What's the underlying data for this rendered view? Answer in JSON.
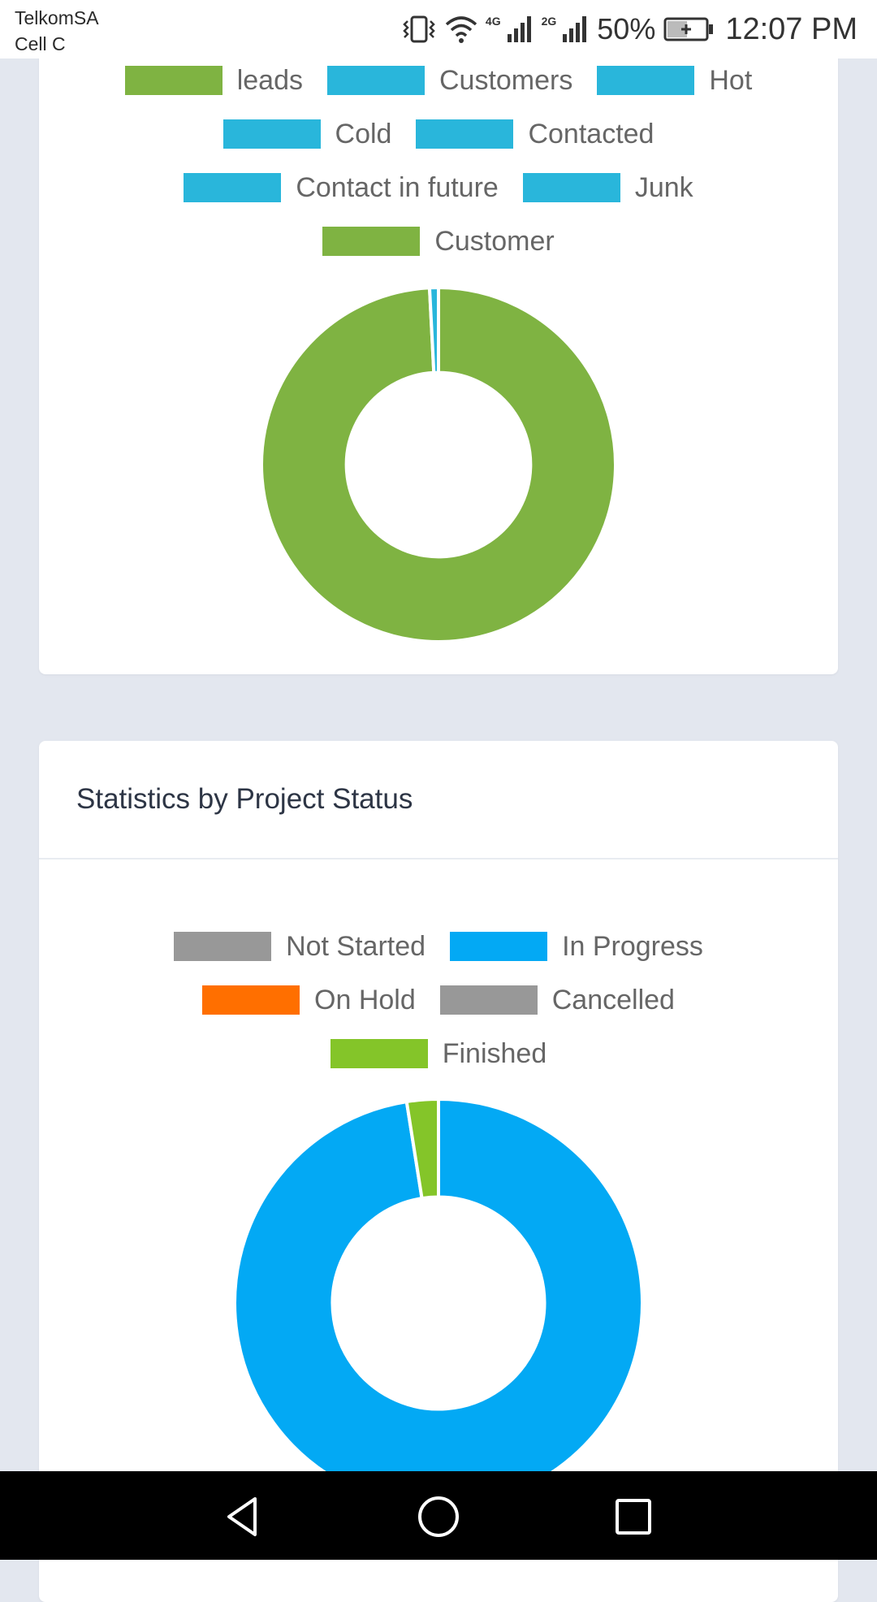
{
  "status_bar": {
    "carrier_line1": "TelkomSA",
    "carrier_line2": "Cell C",
    "net1": "4G",
    "net2": "2G",
    "battery": "50%",
    "time": "12:07 PM",
    "icons": [
      "vibrate-icon",
      "wifi-icon",
      "signal-icon",
      "signal-icon",
      "battery-charging-icon"
    ]
  },
  "leads_card": {
    "legend": [
      {
        "label": "leads",
        "color": "#7fb342"
      },
      {
        "label": "Customers",
        "color": "#29b6db"
      },
      {
        "label": "Hot",
        "color": "#29b6db"
      },
      {
        "label": "Cold",
        "color": "#29b6db"
      },
      {
        "label": "Contacted",
        "color": "#29b6db"
      },
      {
        "label": "Contact in future",
        "color": "#29b6db"
      },
      {
        "label": "Junk",
        "color": "#29b6db"
      },
      {
        "label": "Customer",
        "color": "#7fb342"
      }
    ]
  },
  "project_card": {
    "title": "Statistics by Project Status",
    "legend": [
      {
        "label": "Not Started",
        "color": "#989898"
      },
      {
        "label": "In Progress",
        "color": "#03a9f4"
      },
      {
        "label": "On Hold",
        "color": "#ff6f00"
      },
      {
        "label": "Cancelled",
        "color": "#989898"
      },
      {
        "label": "Finished",
        "color": "#84c529"
      }
    ]
  },
  "chart_data": [
    {
      "type": "pie",
      "categories": [
        "leads",
        "Customers",
        "Hot",
        "Cold",
        "Contacted",
        "Contact in future",
        "Junk",
        "Customer"
      ],
      "values": [
        98.4,
        0.8,
        0,
        0,
        0,
        0,
        0,
        0
      ],
      "colors": [
        "#7fb342",
        "#29b6db",
        "#29b6db",
        "#29b6db",
        "#29b6db",
        "#29b6db",
        "#29b6db",
        "#7fb342"
      ]
    },
    {
      "type": "pie",
      "title": "Statistics by Project Status",
      "categories": [
        "Not Started",
        "In Progress",
        "On Hold",
        "Cancelled",
        "Finished"
      ],
      "values": [
        0,
        97.5,
        0,
        0,
        2.5
      ],
      "colors": [
        "#989898",
        "#03a9f4",
        "#ff6f00",
        "#989898",
        "#84c529"
      ]
    }
  ],
  "nav_bar": {
    "buttons": [
      "back-icon",
      "home-icon",
      "recents-icon"
    ]
  }
}
